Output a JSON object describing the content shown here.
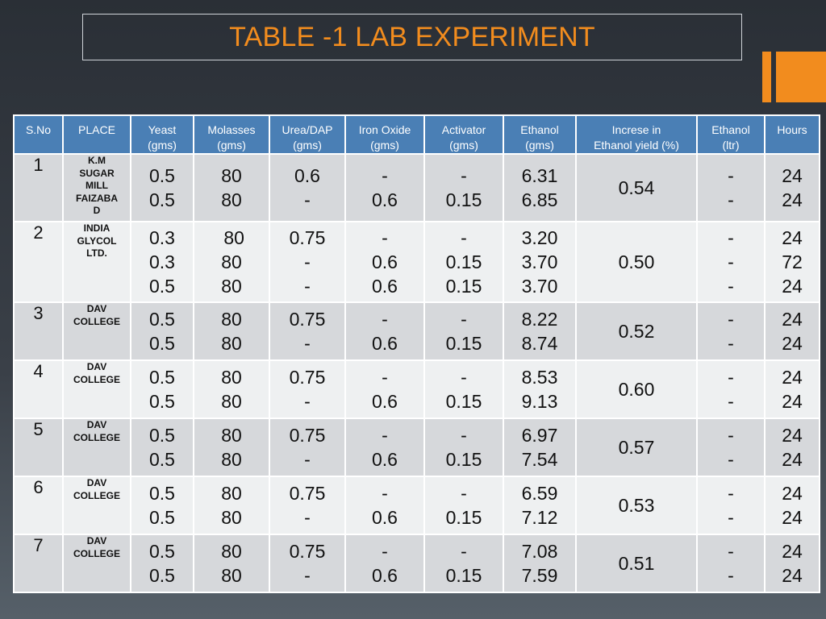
{
  "title": "TABLE -1 LAB EXPERIMENT",
  "colors": {
    "accent": "#f28c1e",
    "header": "#4a7fb5",
    "row_dark": "#d6d8db",
    "row_light": "#eef0f1"
  },
  "headers": {
    "sno": "S.No",
    "place": "PLACE",
    "yeast": [
      "Yeast",
      "(gms)"
    ],
    "molasses": [
      "Molasses",
      "(gms)"
    ],
    "urea": [
      "Urea/DAP",
      "(gms)"
    ],
    "iron": [
      "Iron Oxide",
      "(gms)"
    ],
    "activator": [
      "Activator",
      "(gms)"
    ],
    "ethanol": [
      "Ethanol",
      "(gms)"
    ],
    "increase": [
      "Increse in",
      "Ethanol yield (%)"
    ],
    "ethanol_ltr": [
      "Ethanol",
      "(ltr)"
    ],
    "hours": "Hours"
  },
  "rows": [
    {
      "sno": "1",
      "place": [
        "K.M",
        "SUGAR",
        "MILL",
        "FAIZABA",
        "D"
      ],
      "yeast": [
        "0.5",
        "0.5"
      ],
      "molasses": [
        "80",
        "80"
      ],
      "urea": [
        "0.6",
        "-"
      ],
      "iron": [
        "-",
        "0.6"
      ],
      "activator": [
        "-",
        "0.15"
      ],
      "ethanol": [
        "6.31",
        "6.85"
      ],
      "increase": "0.54",
      "ethanol_ltr": [
        "-",
        "-"
      ],
      "hours": [
        "24",
        "24"
      ]
    },
    {
      "sno": "2",
      "place": [
        "INDIA",
        "GLYCOL",
        "LTD."
      ],
      "yeast": [
        "0.3",
        "0.3",
        "0.5"
      ],
      "molasses": [
        " 80",
        "80",
        "80"
      ],
      "urea": [
        "0.75",
        "-",
        "-"
      ],
      "iron": [
        "-",
        "0.6",
        "0.6"
      ],
      "activator": [
        "-",
        "0.15",
        "0.15"
      ],
      "ethanol": [
        "3.20",
        "3.70",
        "3.70"
      ],
      "increase": "0.50",
      "ethanol_ltr": [
        "-",
        "-",
        "-"
      ],
      "hours": [
        "24",
        "72",
        "24"
      ]
    },
    {
      "sno": "3",
      "place": [
        "DAV",
        "COLLEGE"
      ],
      "yeast": [
        "0.5",
        "0.5"
      ],
      "molasses": [
        "80",
        "80"
      ],
      "urea": [
        "0.75",
        "-"
      ],
      "iron": [
        "-",
        "0.6"
      ],
      "activator": [
        "-",
        "0.15"
      ],
      "ethanol": [
        "8.22",
        "8.74"
      ],
      "increase": "0.52",
      "ethanol_ltr": [
        "-",
        "-"
      ],
      "hours": [
        "24",
        "24"
      ]
    },
    {
      "sno": "4",
      "place": [
        "DAV",
        "COLLEGE"
      ],
      "yeast": [
        "0.5",
        "0.5"
      ],
      "molasses": [
        "80",
        "80"
      ],
      "urea": [
        "0.75",
        "-"
      ],
      "iron": [
        "-",
        "0.6"
      ],
      "activator": [
        "-",
        "0.15"
      ],
      "ethanol": [
        "8.53",
        "9.13"
      ],
      "increase": "0.60",
      "ethanol_ltr": [
        "-",
        "-"
      ],
      "hours": [
        "24",
        "24"
      ]
    },
    {
      "sno": "5",
      "place": [
        "DAV",
        "COLLEGE"
      ],
      "yeast": [
        "0.5",
        "0.5"
      ],
      "molasses": [
        "80",
        "80"
      ],
      "urea": [
        "0.75",
        "-"
      ],
      "iron": [
        "-",
        "0.6"
      ],
      "activator": [
        "-",
        "0.15"
      ],
      "ethanol": [
        "6.97",
        "7.54"
      ],
      "increase": "0.57",
      "ethanol_ltr": [
        "-",
        "-"
      ],
      "hours": [
        "24",
        "24"
      ]
    },
    {
      "sno": "6",
      "place": [
        "DAV",
        "COLLEGE"
      ],
      "yeast": [
        "0.5",
        "0.5"
      ],
      "molasses": [
        "80",
        "80"
      ],
      "urea": [
        "0.75",
        "-"
      ],
      "iron": [
        "-",
        "0.6"
      ],
      "activator": [
        "-",
        "0.15"
      ],
      "ethanol": [
        "6.59",
        "7.12"
      ],
      "increase": "0.53",
      "ethanol_ltr": [
        "-",
        "-"
      ],
      "hours": [
        "24",
        "24"
      ]
    },
    {
      "sno": "7",
      "place": [
        "DAV",
        "COLLEGE"
      ],
      "yeast": [
        "0.5",
        "0.5"
      ],
      "molasses": [
        "80",
        "80"
      ],
      "urea": [
        "0.75",
        "-"
      ],
      "iron": [
        "-",
        "0.6"
      ],
      "activator": [
        "-",
        "0.15"
      ],
      "ethanol": [
        "7.08",
        "7.59"
      ],
      "increase": "0.51",
      "ethanol_ltr": [
        "-",
        "-"
      ],
      "hours": [
        "24",
        "24"
      ]
    }
  ]
}
